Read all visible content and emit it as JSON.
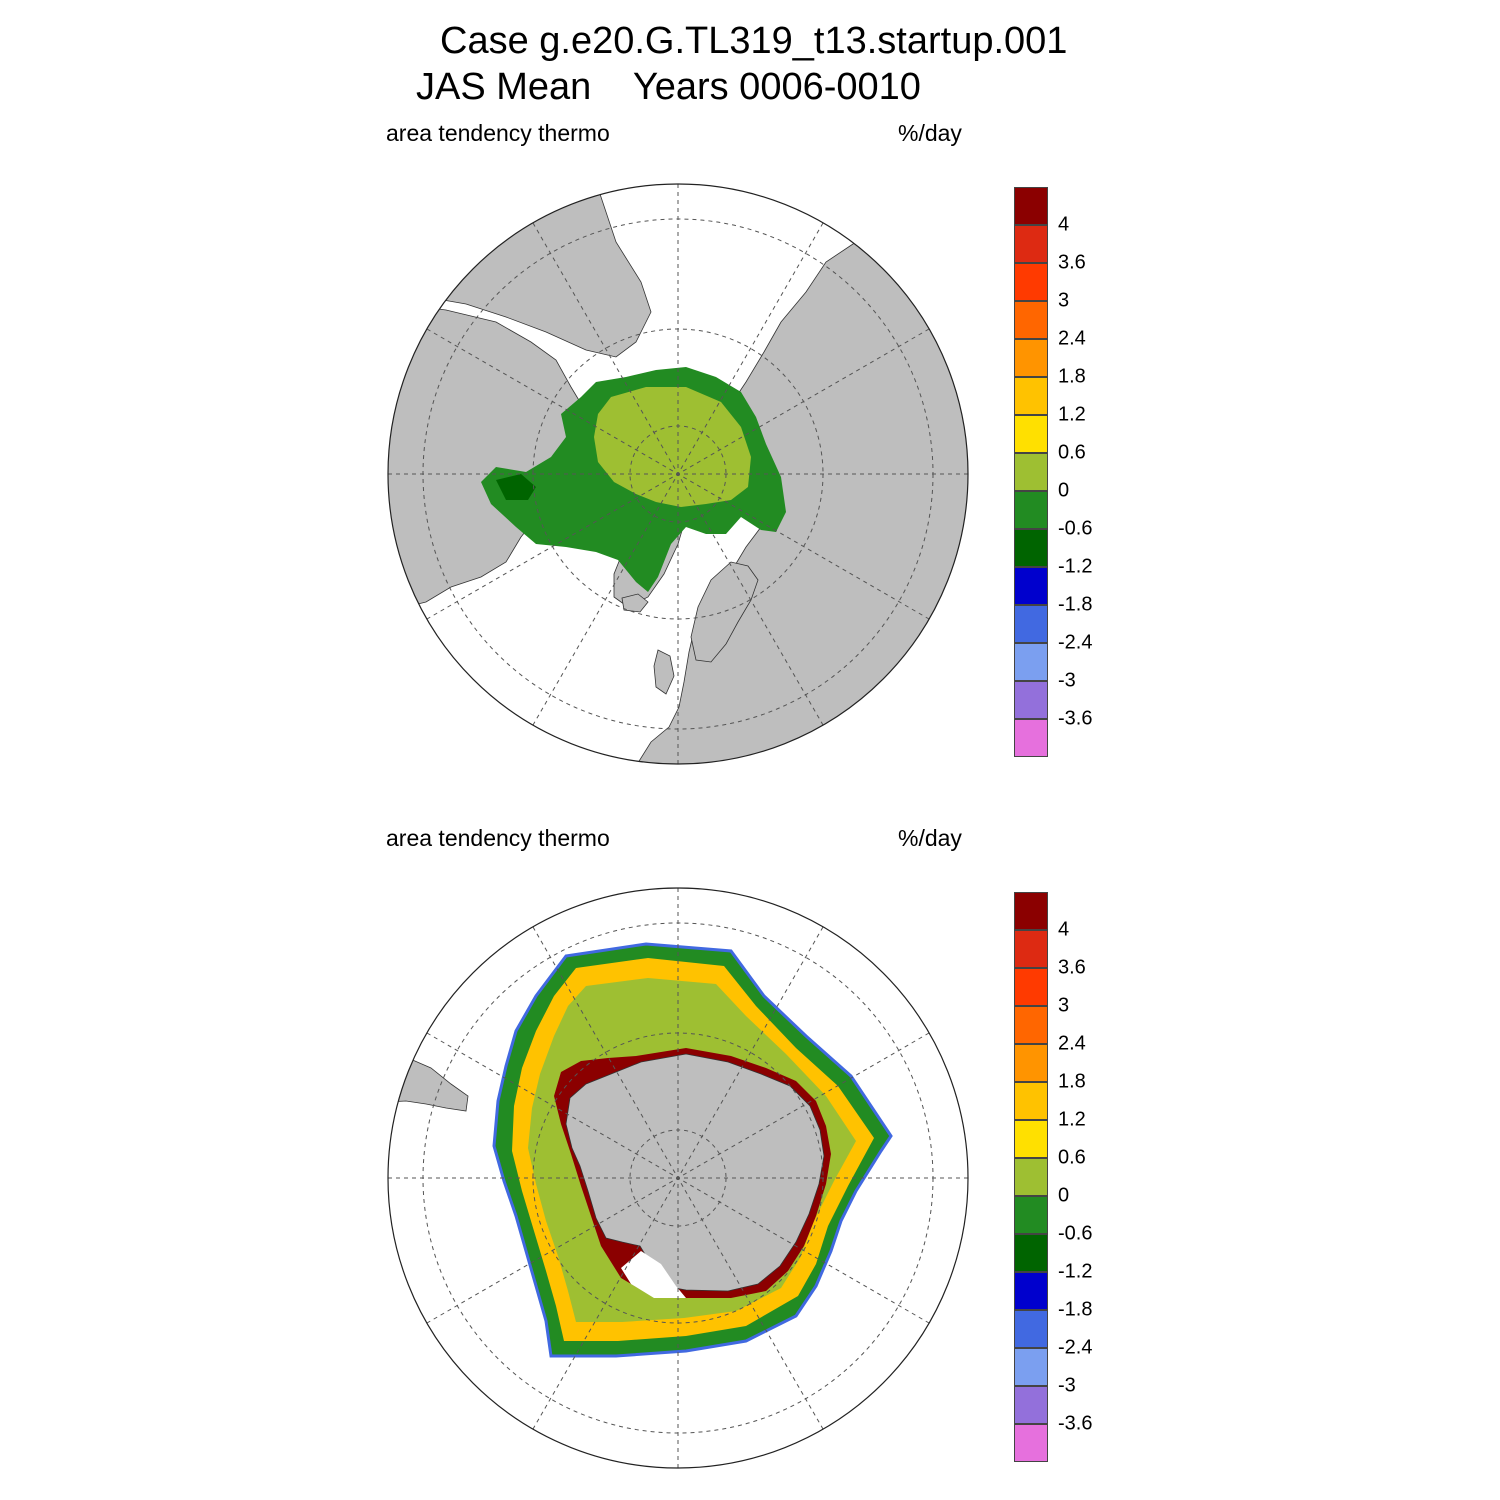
{
  "header": {
    "title_line1": "Case g.e20.G.TL319_t13.startup.001",
    "title_line2": "JAS Mean    Years 0006-0010"
  },
  "panels": [
    {
      "hemisphere": "north",
      "field_label": "area tendency thermo",
      "units_label": "%/day"
    },
    {
      "hemisphere": "south",
      "field_label": "area tendency thermo",
      "units_label": "%/day"
    }
  ],
  "colorbar": {
    "levels": [
      "4",
      "3.6",
      "3",
      "2.4",
      "1.8",
      "1.2",
      "0.6",
      "0",
      "-0.6",
      "-1.2",
      "-1.8",
      "-2.4",
      "-3",
      "-3.6"
    ],
    "colors": [
      "#8b0000",
      "#dd2a12",
      "#ff3a00",
      "#ff6600",
      "#ff9400",
      "#ffc200",
      "#ffe000",
      "#9ebf32",
      "#228b22",
      "#006400",
      "#0000cd",
      "#4169e1",
      "#7b9ff0",
      "#9370db",
      "#e670dd"
    ]
  },
  "map_colors": {
    "land": "#bebebe",
    "ocean": "#ffffff",
    "ice_near_zero": "#9ebf32",
    "ice_slight_neg": "#228b22",
    "ice_neg": "#006400",
    "ice_pos_low": "#ffe000",
    "ice_pos_mid": "#ffc200",
    "ice_pos_high": "#ff6600",
    "ice_edge_max": "#8b0000",
    "ice_strong_neg": "#0000cd",
    "ice_strong_neg2": "#4169e1"
  }
}
